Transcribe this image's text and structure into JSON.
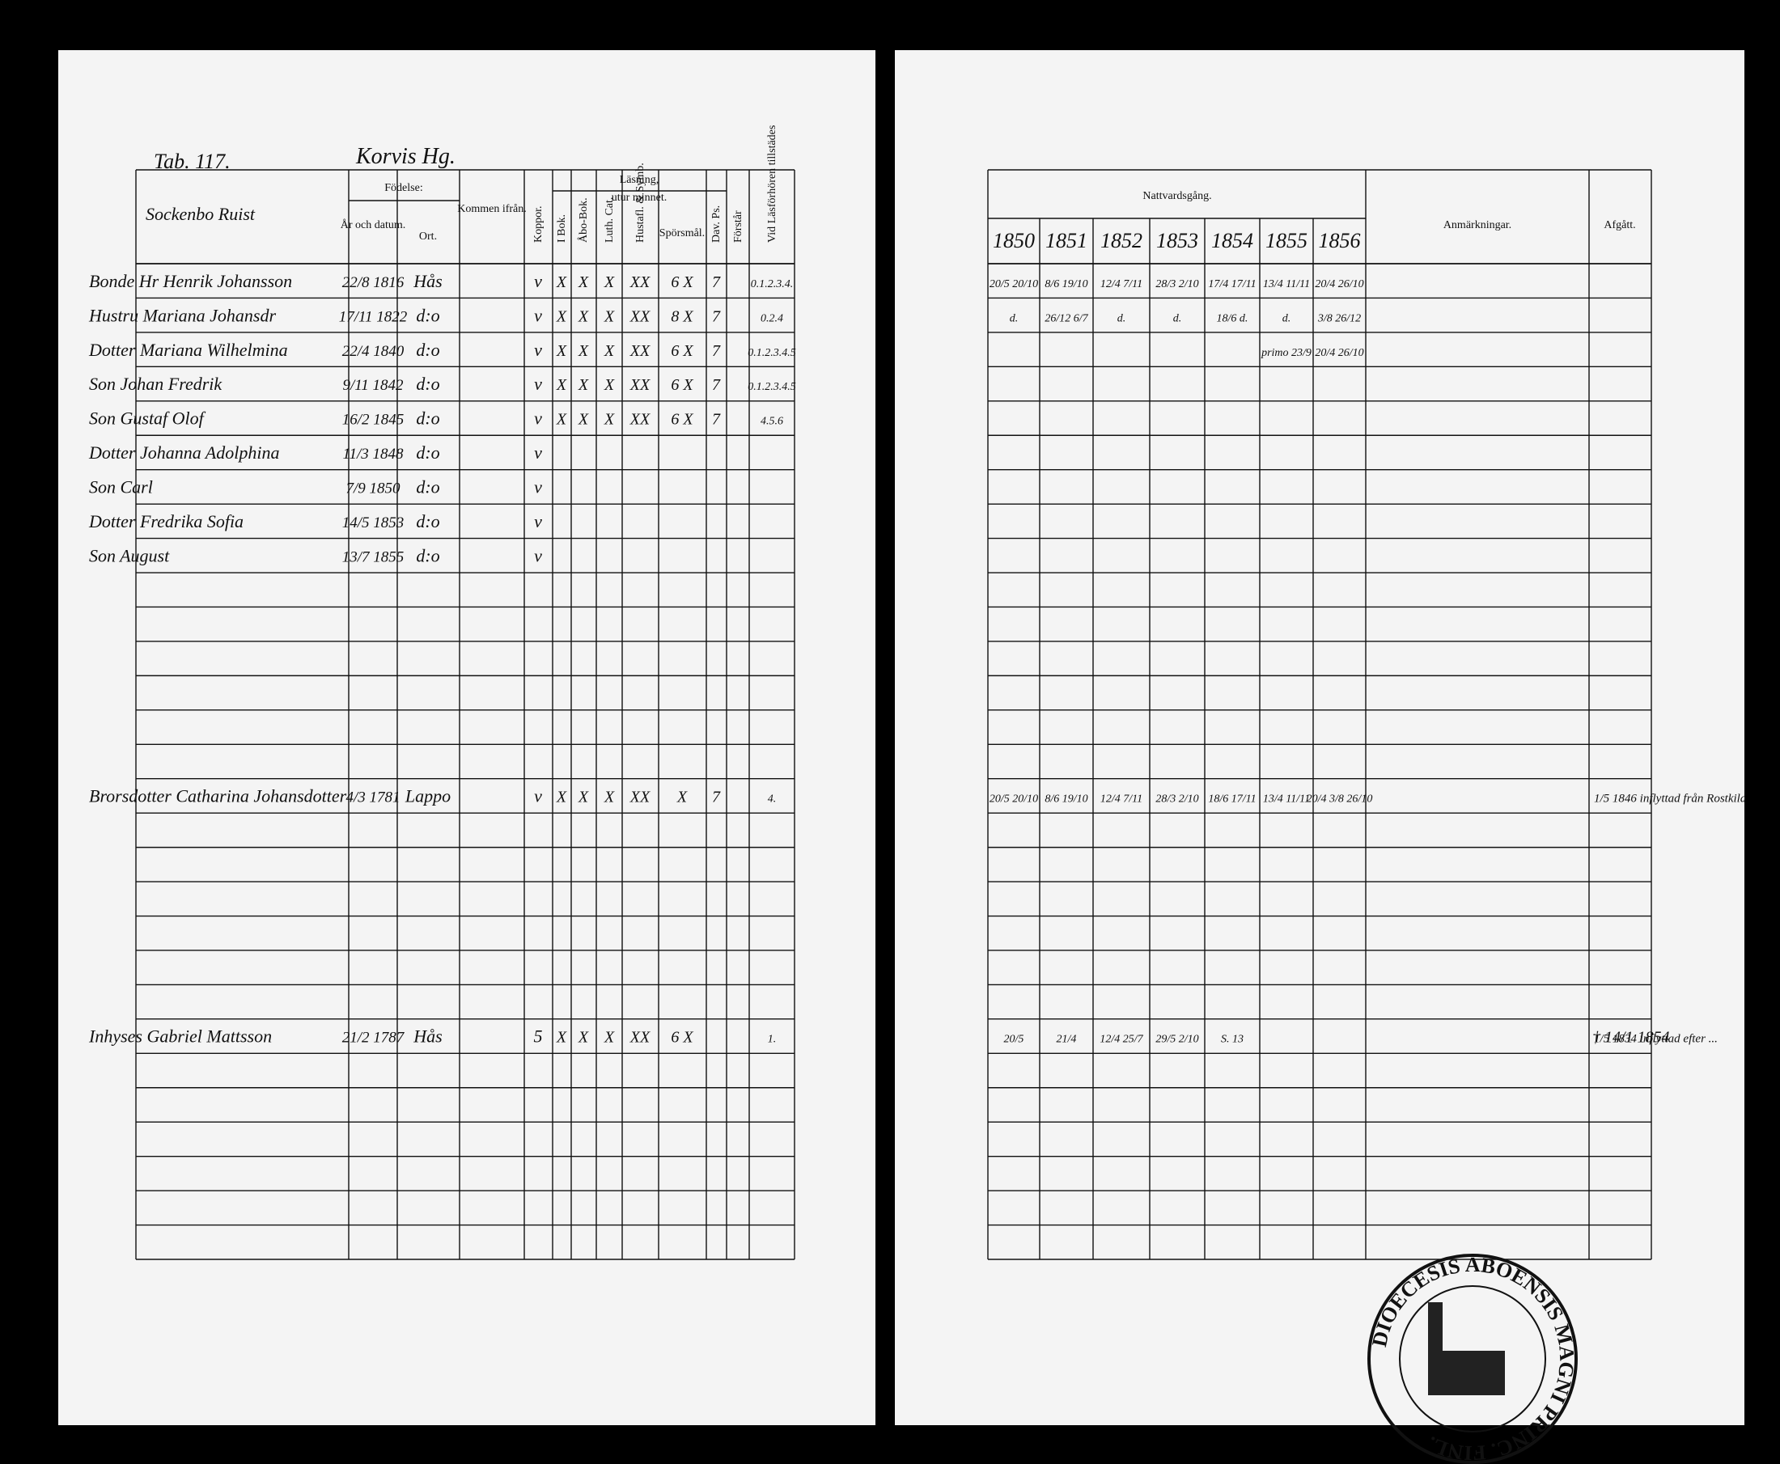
{
  "header": {
    "table_no": "Tab. 117.",
    "farm": "Korvis Hg."
  },
  "left_columns": {
    "name": "Sockenbo Ruist",
    "birth": "Födelse:",
    "birth_date": "År och datum.",
    "birth_place": "Ort.",
    "from": "Kommen ifrån.",
    "pox": "Koppor.",
    "reading": "Läsning,",
    "by_heart": "utur minnet.",
    "book": "I Bok.",
    "abo": "Åbo-Bok.",
    "luth": "Luth. Cat.",
    "hust": "Hustafl. & Symb.",
    "questions": "Spörsmål.",
    "psalms": "Dav. Ps.",
    "understands": "Förstår",
    "present": "Vid Läsförhören tillstädes"
  },
  "right_columns": {
    "communion": "Nattvardsgång.",
    "years": [
      "1850",
      "1851",
      "1852",
      "1853",
      "1854",
      "1855",
      "1856"
    ],
    "remarks": "Anmärkningar.",
    "left": "Afgått."
  },
  "rows": [
    {
      "name": "Bonde Hr Henrik Johansson",
      "born": "22/8 1816",
      "place": "Hås",
      "pox": "v",
      "reading": [
        "X",
        "X",
        "X",
        "XX",
        "6 X",
        "7"
      ],
      "present": "0.1.2.3.4.",
      "communion": [
        "20/5 20/10",
        "8/6 19/10",
        "12/4 7/11",
        "28/3 2/10",
        "17/4 17/11",
        "13/4 11/11",
        "20/4 26/10"
      ]
    },
    {
      "name": "Hustru Mariana Johansdr",
      "born": "17/11 1822",
      "place": "d:o",
      "pox": "v",
      "reading": [
        "X",
        "X",
        "X",
        "XX",
        "8 X",
        "7"
      ],
      "present": "0.2.4",
      "communion": [
        "d.",
        "26/12 6/7",
        "d.",
        "d.",
        "18/6 d.",
        "d.",
        "3/8 26/12"
      ]
    },
    {
      "name": "Dotter Mariana Wilhelmina",
      "born": "22/4 1840",
      "place": "d:o",
      "pox": "v",
      "reading": [
        "X",
        "X",
        "X",
        "XX",
        "6 X",
        "7"
      ],
      "present": "0.1.2.3.4.5",
      "communion": [
        null,
        null,
        null,
        null,
        null,
        "primo 23/9",
        "20/4 26/10"
      ]
    },
    {
      "name": "Son Johan Fredrik",
      "born": "9/11 1842",
      "place": "d:o",
      "pox": "v",
      "reading": [
        "X",
        "X",
        "X",
        "XX",
        "6 X",
        "7"
      ],
      "present": "0.1.2.3.4.5"
    },
    {
      "name": "Son Gustaf Olof",
      "born": "16/2 1845",
      "place": "d:o",
      "pox": "v",
      "reading": [
        "X",
        "X",
        "X",
        "XX",
        "6 X",
        "7"
      ],
      "present": "4.5.6"
    },
    {
      "name": "Dotter Johanna Adolphina",
      "born": "11/3 1848",
      "place": "d:o",
      "pox": "v"
    },
    {
      "name": "Son Carl",
      "born": "7/9 1850",
      "place": "d:o",
      "pox": "v"
    },
    {
      "name": "Dotter Fredrika Sofia",
      "born": "14/5 1853",
      "place": "d:o",
      "pox": "v"
    },
    {
      "name": "Son August",
      "born": "13/7 1855",
      "place": "d:o",
      "pox": "v"
    },
    {
      "name": "Brorsdotter Catharina Johansdotter",
      "born": "4/3 1781",
      "place": "Lappo",
      "pox": "v",
      "reading": [
        "X",
        "X",
        "X",
        "XX",
        "X",
        "7"
      ],
      "present": "4.",
      "communion": [
        "20/5 20/10",
        "8/6 19/10",
        "12/4 7/11",
        "28/3 2/10",
        "18/6 17/11",
        "13/4 11/11",
        "20/4 3/8 26/10"
      ],
      "remark": "1/5 1846 inflyttad från Rostkila"
    },
    {
      "name": "Inhyses Gabriel Mattsson",
      "born": "21/2 1787",
      "place": "Hås",
      "pox": "5",
      "reading": [
        "X",
        "X",
        "X",
        "XX",
        "6 X"
      ],
      "present": "1.",
      "communion": [
        "20/5",
        "21/4",
        "12/4 25/7",
        "29/5 2/10",
        "S. 13"
      ],
      "remark": "1/5 1834 inflyttad efter ...",
      "left": "† 14/1 1854"
    }
  ],
  "stamp": "DIOECESIS ABOENSIS MAGNI PRINC. FINL."
}
